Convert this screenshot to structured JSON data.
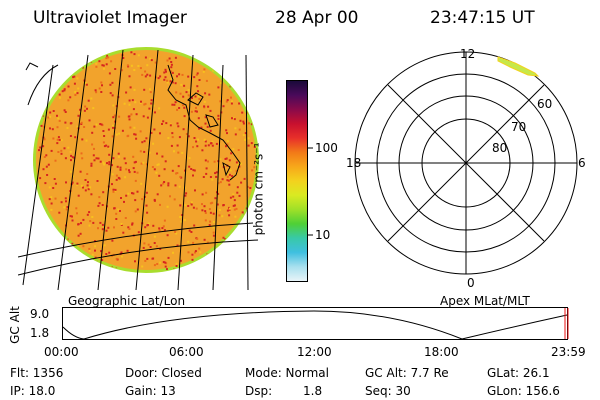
{
  "header": {
    "instrument": "Ultraviolet Imager",
    "date": "28 Apr 00",
    "time": "23:47:15 UT"
  },
  "colorbar": {
    "unit_label": "photon cm⁻²s⁻¹",
    "tick_100": "100",
    "tick_10": "10",
    "colors": [
      "#1a0a3a",
      "#4a0a5a",
      "#8a0a4a",
      "#c8102e",
      "#e8302a",
      "#f27a18",
      "#f7a81a",
      "#f3d21e",
      "#d9ea22",
      "#9fe028",
      "#4fd036",
      "#38c9a8",
      "#3fbfe0",
      "#a8e0ee",
      "#e8f4f8"
    ]
  },
  "geo_map": {
    "caption": "Geographic Lat/Lon",
    "fill_color": "#f2a32c",
    "speckle_color": "#d6261f",
    "rim_color": "#a9dd2e"
  },
  "polar_plot": {
    "caption": "Apex MLat/MLT",
    "mlt_labels": [
      "12",
      "18",
      "6",
      "0"
    ],
    "mlat_labels": [
      "60",
      "70",
      "80"
    ]
  },
  "altitude_strip": {
    "axis_label": "GC Alt",
    "y_max": "9.0",
    "y_min": "1.8",
    "time_ticks": [
      "00:00",
      "06:00",
      "12:00",
      "18:00",
      "23:59"
    ]
  },
  "status": {
    "flt": "Flt: 1356",
    "ip": "IP: 18.0",
    "door": "Door: Closed",
    "gain": "Gain: 13",
    "mode": "Mode: Normal",
    "dsp": "Dsp:",
    "dsp_val": "1.8",
    "gcalt": "GC Alt: 7.7 Re",
    "seq": "Seq: 30",
    "glat": "GLat:  26.1",
    "glon": "GLon: 156.6"
  }
}
